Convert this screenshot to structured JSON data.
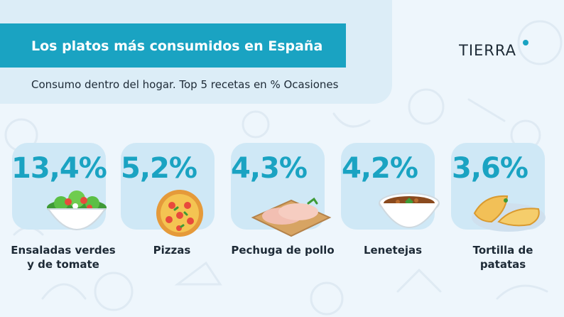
{
  "header": {
    "title": "Los platos más consumidos en España",
    "subtitle": "Consumo dentro del hogar. Top 5 recetas en % Ocasiones"
  },
  "logo": {
    "text": "TIERRA",
    "accent": "#1aa3c2"
  },
  "colors": {
    "accent": "#1aa3c2",
    "card": "#cfe8f6",
    "text": "#1d2a36",
    "background": "#eef6fc"
  },
  "chart_data": {
    "type": "bar",
    "title": "Los platos más consumidos en España",
    "subtitle": "Consumo dentro del hogar. Top 5 recetas en % Ocasiones",
    "categories": [
      "Ensaladas verdes y de tomate",
      "Pizzas",
      "Pechuga de pollo",
      "Lenetejas",
      "Tortilla de patatas"
    ],
    "values": [
      13.4,
      5.2,
      4.3,
      4.2,
      3.6
    ],
    "value_labels": [
      "13,4%",
      "5,2%",
      "4,3%",
      "4,2%",
      "3,6%"
    ],
    "unit": "%",
    "items": [
      {
        "value_label": "13,4%",
        "label_line1": "Ensaladas verdes",
        "label_line2": "y de tomate",
        "icon": "salad-bowl-icon"
      },
      {
        "value_label": "5,2%",
        "label_line1": "Pizzas",
        "label_line2": "",
        "icon": "pizza-icon"
      },
      {
        "value_label": "4,3%",
        "label_line1": "Pechuga de pollo",
        "label_line2": "",
        "icon": "chicken-breast-icon"
      },
      {
        "value_label": "4,2%",
        "label_line1": "Lenetejas",
        "label_line2": "",
        "icon": "lentil-soup-icon"
      },
      {
        "value_label": "3,6%",
        "label_line1": "Tortilla de",
        "label_line2": "patatas",
        "icon": "tortilla-icon"
      }
    ]
  }
}
